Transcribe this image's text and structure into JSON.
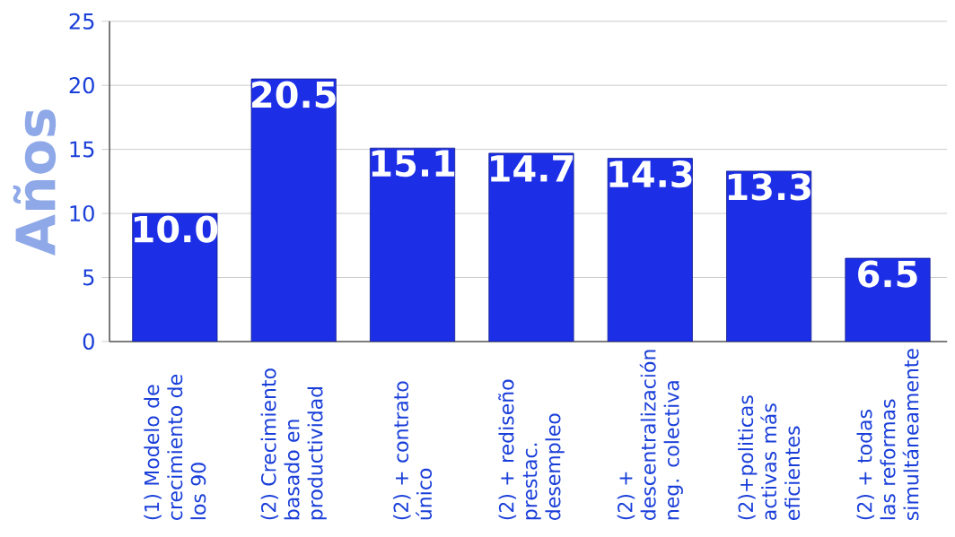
{
  "chart_data": {
    "type": "bar",
    "ylabel": "Años",
    "categories": [
      "(1) Modelo de crecimiento de los 90",
      "(2) Crecimiento basado en productividad",
      "(2) + contrato único",
      "(2) + rediseño prestac. desempleo",
      "(2) + descentralización neg. colectiva",
      "(2)+politicas activas más eficientes",
      "(2) + todas las reformas simultáneamente"
    ],
    "values": [
      10.0,
      20.5,
      15.1,
      14.7,
      14.3,
      13.3,
      6.5
    ],
    "value_labels": [
      "10.0",
      "20.5",
      "15.1",
      "14.7",
      "14.3",
      "13.3",
      "6.5"
    ],
    "color": "#1c2fe6",
    "ylim": [
      0,
      25
    ],
    "yticks": [
      0,
      5,
      10,
      15,
      20,
      25
    ],
    "grid": "y"
  }
}
